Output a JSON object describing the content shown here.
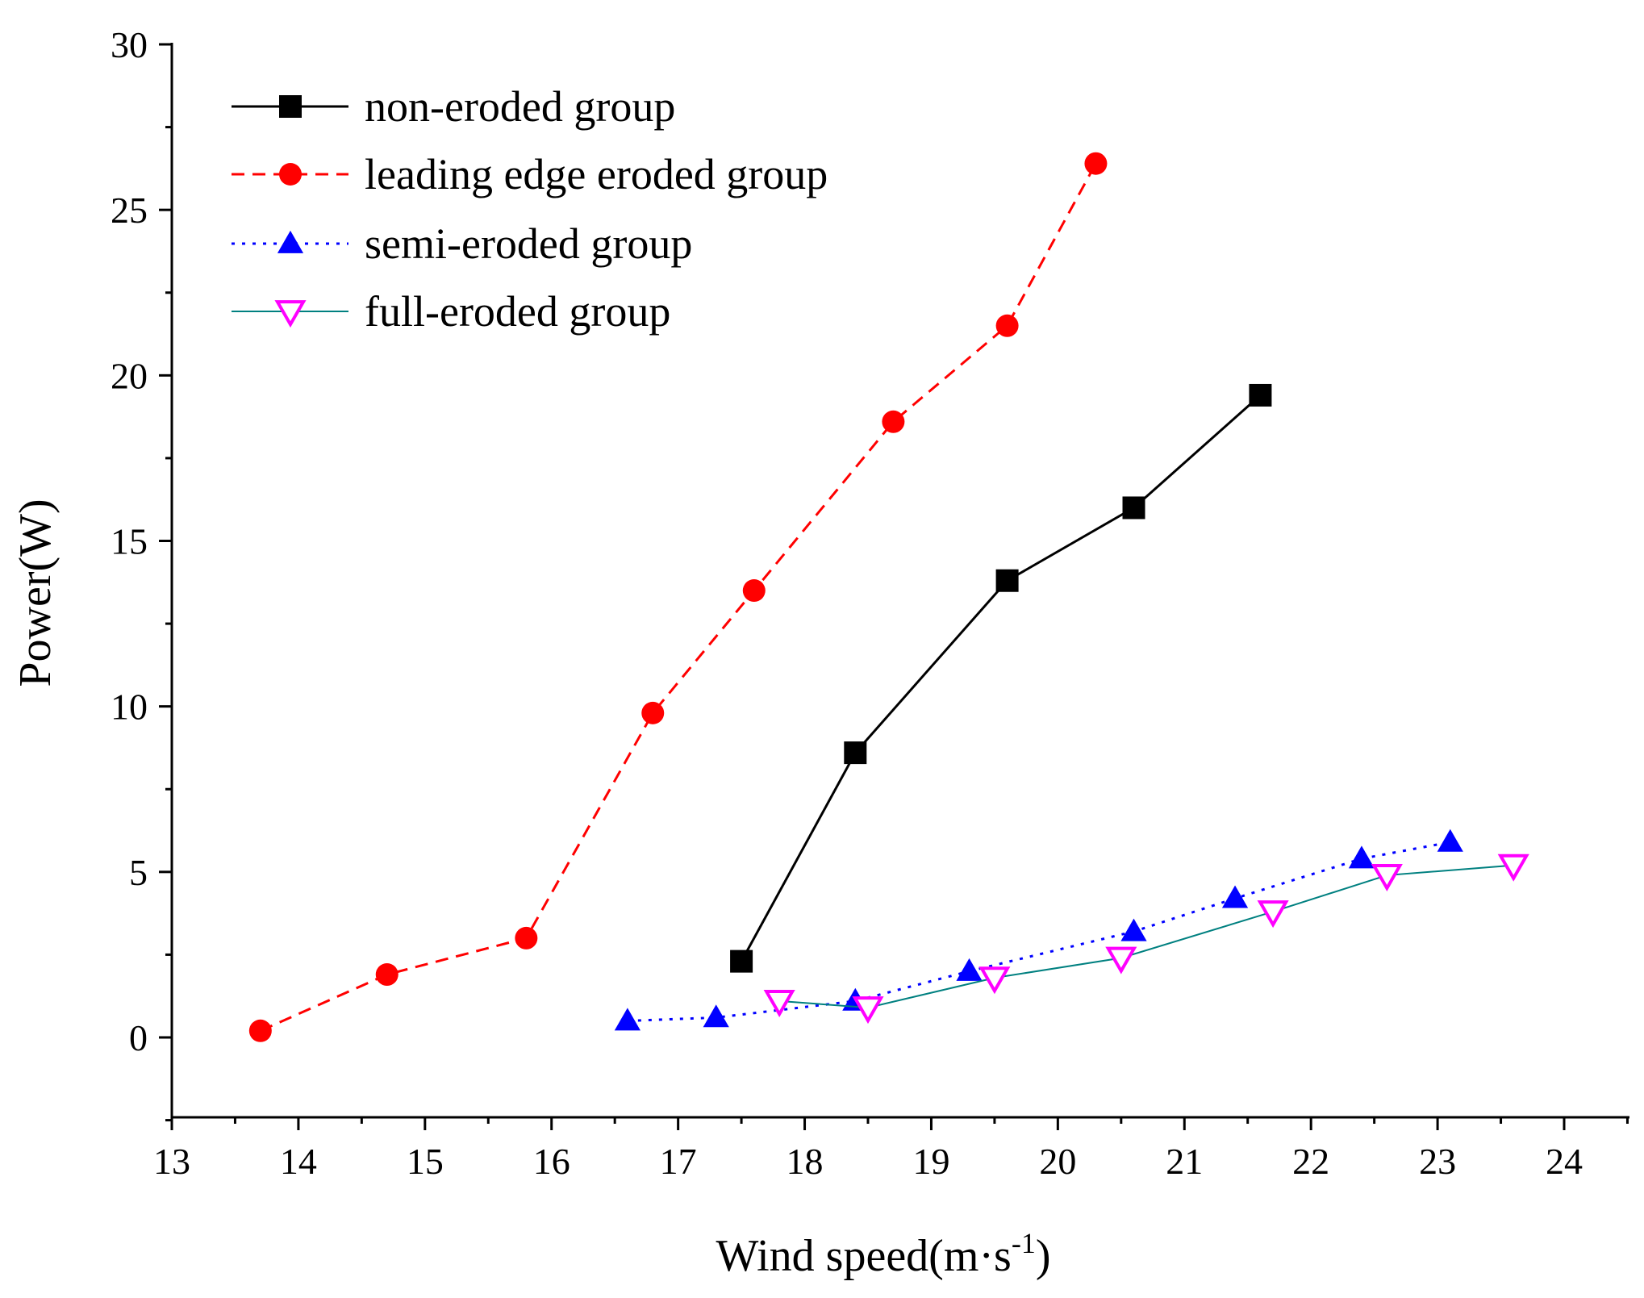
{
  "chart_data": {
    "type": "line",
    "title": "",
    "xlabel": {
      "main": "Wind speed(m·s",
      "sup": "-1",
      "close": ")"
    },
    "ylabel": "Power(W)",
    "xlim": [
      13,
      24.5
    ],
    "ylim": [
      -2.5,
      30
    ],
    "xticks": [
      13,
      14,
      15,
      16,
      17,
      18,
      19,
      20,
      21,
      22,
      23,
      24
    ],
    "yticks": [
      0,
      5,
      10,
      15,
      20,
      25,
      30
    ],
    "legend_position": "top-left",
    "series": [
      {
        "name": "non-eroded group",
        "color": "#000000",
        "line_style": "solid",
        "marker": "square",
        "marker_fill": "#000000",
        "x": [
          17.5,
          18.4,
          19.6,
          20.6,
          21.6
        ],
        "y": [
          2.3,
          8.6,
          13.8,
          16.0,
          19.4
        ]
      },
      {
        "name": "leading edge eroded group",
        "color": "#ff0000",
        "line_style": "dashed",
        "marker": "circle",
        "marker_fill": "#ff0000",
        "x": [
          13.7,
          14.7,
          15.8,
          16.8,
          17.6,
          18.7,
          19.6,
          20.3
        ],
        "y": [
          0.2,
          1.9,
          3.0,
          9.8,
          13.5,
          18.6,
          21.5,
          26.4
        ]
      },
      {
        "name": "semi-eroded group",
        "color": "#0000ff",
        "line_style": "dotted",
        "marker": "triangle-up",
        "marker_fill": "#0000ff",
        "x": [
          16.6,
          17.3,
          18.4,
          19.3,
          20.6,
          21.4,
          22.4,
          23.1
        ],
        "y": [
          0.5,
          0.6,
          1.1,
          2.0,
          3.2,
          4.2,
          5.4,
          5.9
        ]
      },
      {
        "name": "full-eroded group",
        "color": "#008080",
        "line_style": "solid",
        "marker": "triangle-down-open",
        "marker_fill": "#ff00ff",
        "x": [
          17.8,
          18.5,
          19.5,
          20.5,
          21.7,
          22.6,
          23.6
        ],
        "y": [
          1.1,
          0.9,
          1.8,
          2.4,
          3.8,
          4.9,
          5.2
        ]
      }
    ]
  }
}
